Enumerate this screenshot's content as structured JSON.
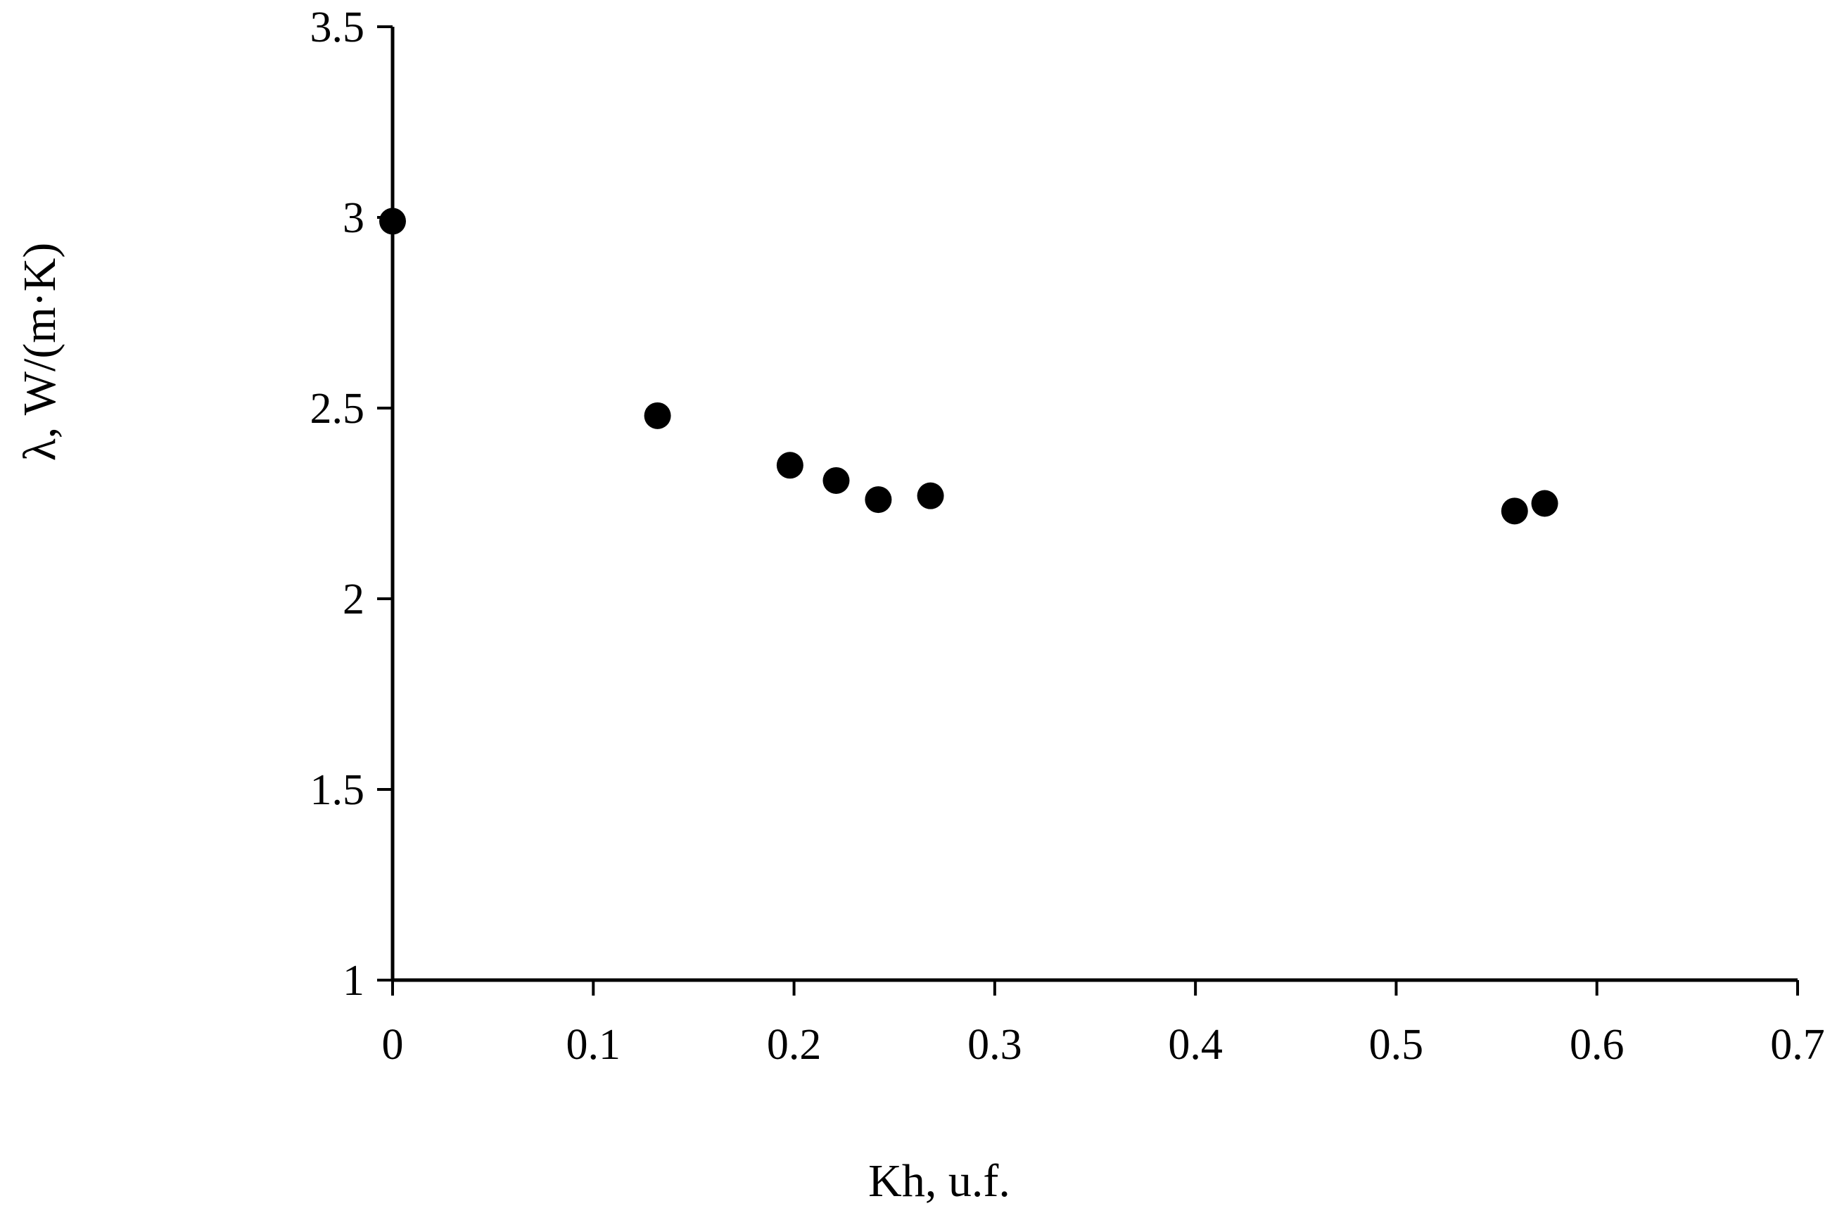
{
  "chart_data": {
    "type": "scatter",
    "xlabel": "Kh, u.f.",
    "ylabel": "λ, W/(m·K)",
    "xlim": [
      0,
      0.7
    ],
    "ylim": [
      1,
      3.5
    ],
    "x_ticks": [
      "0",
      "0.1",
      "0.2",
      "0.3",
      "0.4",
      "0.5",
      "0.6",
      "0.7"
    ],
    "y_ticks": [
      "1",
      "1.5",
      "2",
      "2.5",
      "3",
      "3.5"
    ],
    "grid": false,
    "series": [
      {
        "x": [
          0,
          0.132,
          0.198,
          0.221,
          0.242,
          0.268,
          0.559,
          0.574
        ],
        "y": [
          2.99,
          2.48,
          2.35,
          2.31,
          2.26,
          2.27,
          2.23,
          2.25
        ]
      }
    ],
    "colors": {
      "marker": "#000000",
      "axis": "#000000"
    }
  }
}
